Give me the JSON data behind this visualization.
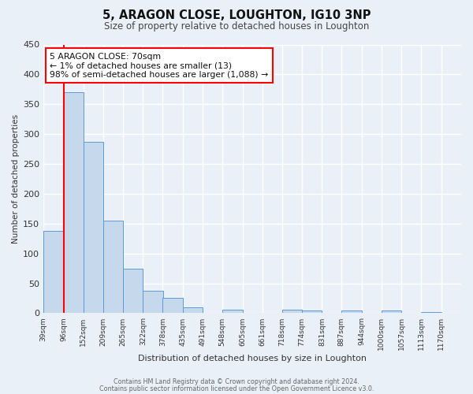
{
  "title": "5, ARAGON CLOSE, LOUGHTON, IG10 3NP",
  "subtitle": "Size of property relative to detached houses in Loughton",
  "xlabel": "Distribution of detached houses by size in Loughton",
  "ylabel": "Number of detached properties",
  "bin_labels": [
    "39sqm",
    "96sqm",
    "152sqm",
    "209sqm",
    "265sqm",
    "322sqm",
    "378sqm",
    "435sqm",
    "491sqm",
    "548sqm",
    "605sqm",
    "661sqm",
    "718sqm",
    "774sqm",
    "831sqm",
    "887sqm",
    "944sqm",
    "1000sqm",
    "1057sqm",
    "1113sqm",
    "1170sqm"
  ],
  "bar_values": [
    138,
    370,
    287,
    155,
    75,
    38,
    26,
    10,
    0,
    6,
    0,
    0,
    6,
    4,
    0,
    4,
    0,
    5,
    0,
    2
  ],
  "bar_color": "#c5d8ec",
  "bar_edge_color": "#5b9bd5",
  "annotation_line1": "5 ARAGON CLOSE: 70sqm",
  "annotation_line2": "← 1% of detached houses are smaller (13)",
  "annotation_line3": "98% of semi-detached houses are larger (1,088) →",
  "annotation_box_color": "white",
  "annotation_box_edge_color": "red",
  "marker_line_color": "red",
  "ylim": [
    0,
    450
  ],
  "yticks": [
    0,
    50,
    100,
    150,
    200,
    250,
    300,
    350,
    400,
    450
  ],
  "footer_line1": "Contains HM Land Registry data © Crown copyright and database right 2024.",
  "footer_line2": "Contains public sector information licensed under the Open Government Licence v3.0.",
  "bg_color": "#eaf0f8",
  "plot_bg_color": "#eaf0f8",
  "grid_color": "#d8e0ec"
}
